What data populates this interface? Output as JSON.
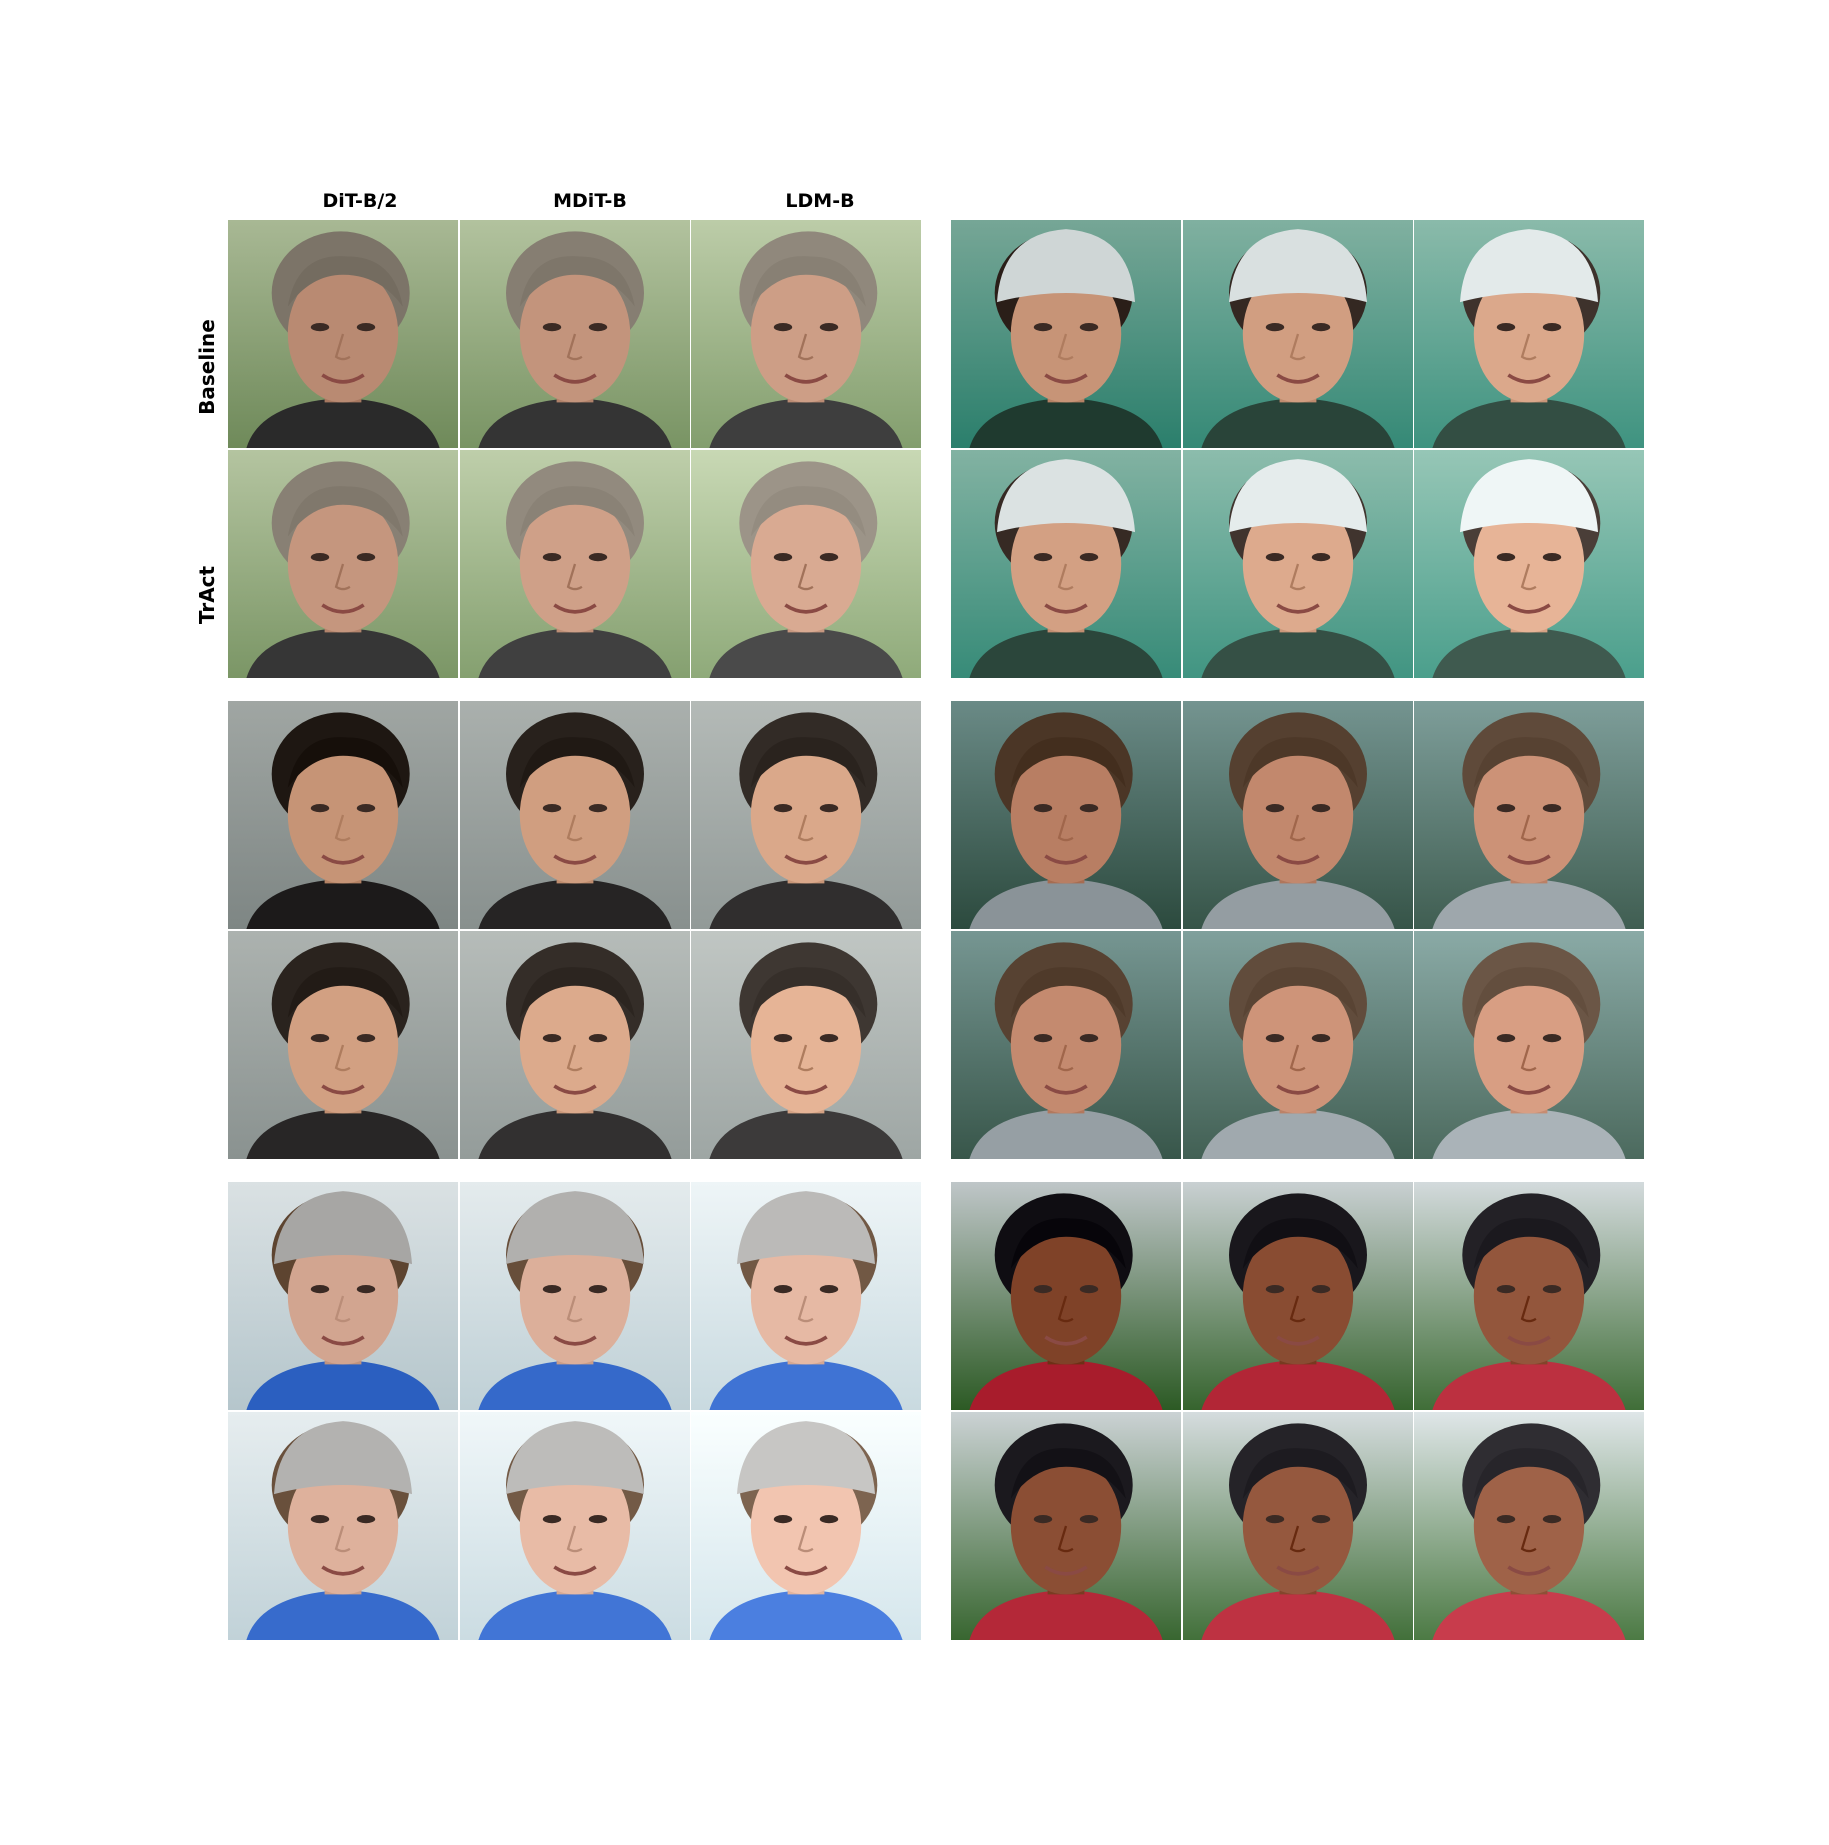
{
  "column_headers": [
    "DiT-B/2",
    "MDiT-B",
    "LDM-B"
  ],
  "row_labels": [
    "Baseline",
    "TrAct"
  ],
  "panels": [
    {
      "name": "older-man-outdoors",
      "bg": [
        "#7f9a6a",
        "#b8c8a4"
      ],
      "skin": "#c99a82",
      "hair": "#8c8478",
      "cloth": "#3a3a3a",
      "hat": null
    },
    {
      "name": "girl-with-white-headdress",
      "bg": [
        "#3b8f7c",
        "#86b6a6"
      ],
      "skin": "#d7a487",
      "hair": "#3a2e28",
      "cloth": "#2f4a3f",
      "hat": "#dfe6e6"
    },
    {
      "name": "man-grey-background",
      "bg": [
        "#8e9694",
        "#b0b6b3"
      ],
      "skin": "#d6a486",
      "hair": "#2e2722",
      "cloth": "#2c2a2a",
      "hat": null
    },
    {
      "name": "young-man-near-water",
      "bg": [
        "#3c5a4e",
        "#7a9a96"
      ],
      "skin": "#c88e73",
      "hair": "#5b4636",
      "cloth": "#9aa3a8",
      "hat": null
    },
    {
      "name": "girl-grey-hat",
      "bg": [
        "#c5d6dc",
        "#eaf1f3"
      ],
      "skin": "#e2b5a0",
      "hair": "#6d5440",
      "cloth": "#3b6fd0",
      "hat": "#b7b6b4"
    },
    {
      "name": "smiling-man-red-jacket",
      "bg": [
        "#3c6a34",
        "#cfd6d8"
      ],
      "skin": "#8f5238",
      "hair": "#1f1d22",
      "cloth": "#b82c3c",
      "hat": null
    }
  ]
}
